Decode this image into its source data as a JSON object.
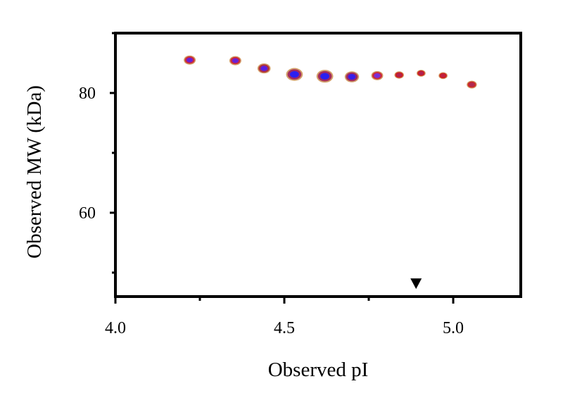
{
  "chart_data": {
    "type": "scatter",
    "title": "",
    "xlabel": "Observed pI",
    "ylabel": "Observed MW (kDa)",
    "xlim": [
      4.0,
      5.2
    ],
    "ylim": [
      46,
      90
    ],
    "x_ticks": [
      4.0,
      4.5,
      5.0
    ],
    "x_tick_labels": [
      "4.0",
      "4.5",
      "5.0"
    ],
    "y_ticks": [
      60,
      80
    ],
    "y_tick_labels": [
      "60",
      "80"
    ],
    "grid": false,
    "points": [
      {
        "x": 4.22,
        "y": 85.5,
        "size": 1.0,
        "outer": "#d4a06a",
        "mid": "#cc2a3a",
        "core": "#6a1fd6"
      },
      {
        "x": 4.355,
        "y": 85.4,
        "size": 1.0,
        "outer": "#d4a06a",
        "mid": "#cc2a3a",
        "core": "#6a1fd6"
      },
      {
        "x": 4.44,
        "y": 84.1,
        "size": 1.1,
        "outer": "#d4a06a",
        "mid": "#b0303c",
        "core": "#5a1fe0"
      },
      {
        "x": 4.53,
        "y": 83.1,
        "size": 1.4,
        "outer": "#d4a06a",
        "mid": "#a02a60",
        "core": "#2b1ff0"
      },
      {
        "x": 4.62,
        "y": 82.8,
        "size": 1.4,
        "outer": "#d4a06a",
        "mid": "#a02a60",
        "core": "#2b1ff0"
      },
      {
        "x": 4.7,
        "y": 82.7,
        "size": 1.2,
        "outer": "#d4a06a",
        "mid": "#a02a60",
        "core": "#3a1fe8"
      },
      {
        "x": 4.775,
        "y": 82.9,
        "size": 1.0,
        "outer": "#d4a06a",
        "mid": "#cc2a3a",
        "core": "#7a2fd8"
      },
      {
        "x": 4.84,
        "y": 83.0,
        "size": 0.8,
        "outer": "#d4a06a",
        "mid": "#cc2020",
        "core": "#b02050"
      },
      {
        "x": 4.905,
        "y": 83.3,
        "size": 0.75,
        "outer": "#d4a06a",
        "mid": "#cc2020",
        "core": "#b02050"
      },
      {
        "x": 4.97,
        "y": 82.9,
        "size": 0.75,
        "outer": "#d4a06a",
        "mid": "#cc2020",
        "core": "#c02040"
      },
      {
        "x": 5.055,
        "y": 81.4,
        "size": 0.85,
        "outer": "#d4a06a",
        "mid": "#cc2a2a",
        "core": "#b02850"
      }
    ],
    "marker": {
      "x": 4.89,
      "y": 48.2,
      "shape": "triangle-down",
      "color": "#000000"
    }
  }
}
